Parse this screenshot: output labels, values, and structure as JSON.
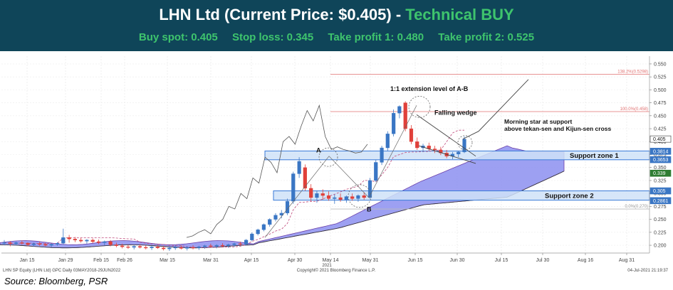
{
  "header": {
    "title_main": "LHN Ltd (Current Price: $0.405) - ",
    "title_rating": "Technical BUY",
    "buy_spot": "Buy spot: 0.405",
    "stop_loss": "Stop loss: 0.345",
    "take_profit_1": "Take profit 1: 0.480",
    "take_profit_2": "Take profit 2: 0.525"
  },
  "footer": {
    "bloomberg_left": "LHN SP Equity (LHN Ltd) GPC  Daily 03MAY2018-29JUN2022",
    "bloomberg_center": "Copyright© 2021 Bloomberg Finance L.P.",
    "bloomberg_right": "04-Jul-2021 21:19:37",
    "source": "Source: Bloomberg, PSR"
  },
  "colors": {
    "header_bg": "#0f4559",
    "rating_green": "#3ec46d",
    "bull_candle": "#3a76c4",
    "bear_candle": "#e0403a",
    "cloud_fill": "#8c8ff0",
    "support_zone_fill": "#cfe2f8",
    "support_zone_stroke": "#3a7ad8",
    "fib_line": "#e07070"
  },
  "chart_data": {
    "type": "candlestick",
    "ylim": [
      0.185,
      0.565
    ],
    "yticks": [
      "0.550",
      "0.525",
      "0.500",
      "0.475",
      "0.450",
      "0.425",
      "0.400",
      "0.375",
      "0.350",
      "0.325",
      "0.300",
      "0.275",
      "0.250",
      "0.225",
      "0.200"
    ],
    "x_ticks": [
      "Jan 15",
      "Jan 29",
      "Feb 15",
      "Feb 26",
      "Mar 15",
      "Mar 31",
      "Apr 15",
      "Apr 30",
      "May 14",
      "May 31",
      "Jun 15",
      "Jun 30",
      "Jul 15",
      "Jul 30",
      "Aug 16",
      "Aug 31"
    ],
    "x_year_label": "2021",
    "price_labels": [
      {
        "text": "0.405",
        "value": 0.405,
        "style": "current"
      },
      {
        "text": "0.3814",
        "value": 0.3814,
        "style": "blue"
      },
      {
        "text": "0.3653",
        "value": 0.3653,
        "style": "blue"
      },
      {
        "text": "0.339",
        "value": 0.339,
        "style": "green"
      },
      {
        "text": "0.305",
        "value": 0.305,
        "style": "blue"
      },
      {
        "text": "0.2861",
        "value": 0.2861,
        "style": "blue"
      }
    ],
    "fib_levels": [
      {
        "label": "138.2%(0.5298)",
        "value": 0.5298
      },
      {
        "label": "100.0%(0.458)",
        "value": 0.458
      },
      {
        "label": "0.0%(0.270)",
        "value": 0.27
      }
    ],
    "support_zones": [
      {
        "label": "Support zone 1",
        "low": 0.365,
        "high": 0.382
      },
      {
        "label": "Support zone 2",
        "low": 0.287,
        "high": 0.305
      }
    ],
    "annotations": {
      "point_a": "A",
      "point_b": "B",
      "extension": "1:1 extension level of A-B",
      "falling_wedge": "Falling wedge",
      "morning_star_1": "Morning star at support",
      "morning_star_2": "above tekan-sen and Kijun-sen cross"
    },
    "candles": [
      [
        0.205,
        0.21,
        0.2,
        0.205
      ],
      [
        0.205,
        0.208,
        0.198,
        0.203
      ],
      [
        0.203,
        0.207,
        0.2,
        0.205
      ],
      [
        0.205,
        0.209,
        0.201,
        0.204
      ],
      [
        0.204,
        0.206,
        0.198,
        0.201
      ],
      [
        0.201,
        0.205,
        0.197,
        0.203
      ],
      [
        0.203,
        0.207,
        0.199,
        0.202
      ],
      [
        0.202,
        0.205,
        0.198,
        0.2
      ],
      [
        0.2,
        0.204,
        0.197,
        0.202
      ],
      [
        0.202,
        0.206,
        0.199,
        0.204
      ],
      [
        0.204,
        0.232,
        0.202,
        0.215
      ],
      [
        0.215,
        0.22,
        0.205,
        0.212
      ],
      [
        0.212,
        0.216,
        0.206,
        0.21
      ],
      [
        0.21,
        0.214,
        0.205,
        0.208
      ],
      [
        0.208,
        0.212,
        0.203,
        0.21
      ],
      [
        0.21,
        0.213,
        0.204,
        0.207
      ],
      [
        0.207,
        0.211,
        0.202,
        0.205
      ],
      [
        0.205,
        0.209,
        0.2,
        0.207
      ],
      [
        0.207,
        0.21,
        0.198,
        0.201
      ],
      [
        0.201,
        0.205,
        0.196,
        0.199
      ],
      [
        0.199,
        0.203,
        0.194,
        0.197
      ],
      [
        0.197,
        0.201,
        0.193,
        0.196
      ],
      [
        0.196,
        0.2,
        0.192,
        0.198
      ],
      [
        0.198,
        0.202,
        0.194,
        0.196
      ],
      [
        0.196,
        0.2,
        0.192,
        0.195
      ],
      [
        0.195,
        0.199,
        0.191,
        0.197
      ],
      [
        0.197,
        0.201,
        0.193,
        0.195
      ],
      [
        0.195,
        0.199,
        0.19,
        0.193
      ],
      [
        0.193,
        0.197,
        0.189,
        0.195
      ],
      [
        0.195,
        0.2,
        0.191,
        0.196
      ],
      [
        0.196,
        0.2,
        0.192,
        0.194
      ],
      [
        0.194,
        0.198,
        0.19,
        0.196
      ],
      [
        0.196,
        0.2,
        0.192,
        0.195
      ],
      [
        0.195,
        0.199,
        0.191,
        0.197
      ],
      [
        0.197,
        0.201,
        0.193,
        0.199
      ],
      [
        0.199,
        0.203,
        0.195,
        0.198
      ],
      [
        0.198,
        0.202,
        0.194,
        0.2
      ],
      [
        0.2,
        0.204,
        0.196,
        0.199
      ],
      [
        0.199,
        0.203,
        0.195,
        0.201
      ],
      [
        0.201,
        0.205,
        0.197,
        0.203
      ],
      [
        0.203,
        0.207,
        0.199,
        0.202
      ],
      [
        0.202,
        0.212,
        0.2,
        0.21
      ],
      [
        0.21,
        0.225,
        0.208,
        0.222
      ],
      [
        0.222,
        0.232,
        0.219,
        0.23
      ],
      [
        0.23,
        0.242,
        0.227,
        0.24
      ],
      [
        0.24,
        0.252,
        0.236,
        0.25
      ],
      [
        0.25,
        0.262,
        0.246,
        0.258
      ],
      [
        0.258,
        0.268,
        0.252,
        0.262
      ],
      [
        0.262,
        0.29,
        0.258,
        0.285
      ],
      [
        0.285,
        0.342,
        0.28,
        0.338
      ],
      [
        0.338,
        0.37,
        0.33,
        0.362
      ],
      [
        0.35,
        0.356,
        0.305,
        0.31
      ],
      [
        0.31,
        0.318,
        0.285,
        0.292
      ],
      [
        0.292,
        0.305,
        0.282,
        0.3
      ],
      [
        0.3,
        0.308,
        0.288,
        0.296
      ],
      [
        0.296,
        0.304,
        0.286,
        0.29
      ],
      [
        0.29,
        0.298,
        0.28,
        0.292
      ],
      [
        0.292,
        0.3,
        0.284,
        0.288
      ],
      [
        0.288,
        0.296,
        0.282,
        0.294
      ],
      [
        0.294,
        0.3,
        0.286,
        0.29
      ],
      [
        0.29,
        0.298,
        0.284,
        0.296
      ],
      [
        0.296,
        0.302,
        0.288,
        0.292
      ],
      [
        0.292,
        0.33,
        0.29,
        0.325
      ],
      [
        0.325,
        0.365,
        0.322,
        0.36
      ],
      [
        0.36,
        0.392,
        0.355,
        0.388
      ],
      [
        0.388,
        0.42,
        0.382,
        0.415
      ],
      [
        0.415,
        0.462,
        0.41,
        0.455
      ],
      [
        0.455,
        0.47,
        0.445,
        0.468
      ],
      [
        0.475,
        0.478,
        0.42,
        0.425
      ],
      [
        0.425,
        0.432,
        0.395,
        0.4
      ],
      [
        0.4,
        0.408,
        0.384,
        0.388
      ],
      [
        0.388,
        0.396,
        0.38,
        0.392
      ],
      [
        0.392,
        0.398,
        0.382,
        0.386
      ],
      [
        0.386,
        0.392,
        0.378,
        0.384
      ],
      [
        0.384,
        0.39,
        0.374,
        0.378
      ],
      [
        0.378,
        0.384,
        0.368,
        0.372
      ],
      [
        0.372,
        0.38,
        0.366,
        0.376
      ],
      [
        0.376,
        0.382,
        0.37,
        0.38
      ],
      [
        0.38,
        0.41,
        0.378,
        0.405
      ]
    ]
  }
}
